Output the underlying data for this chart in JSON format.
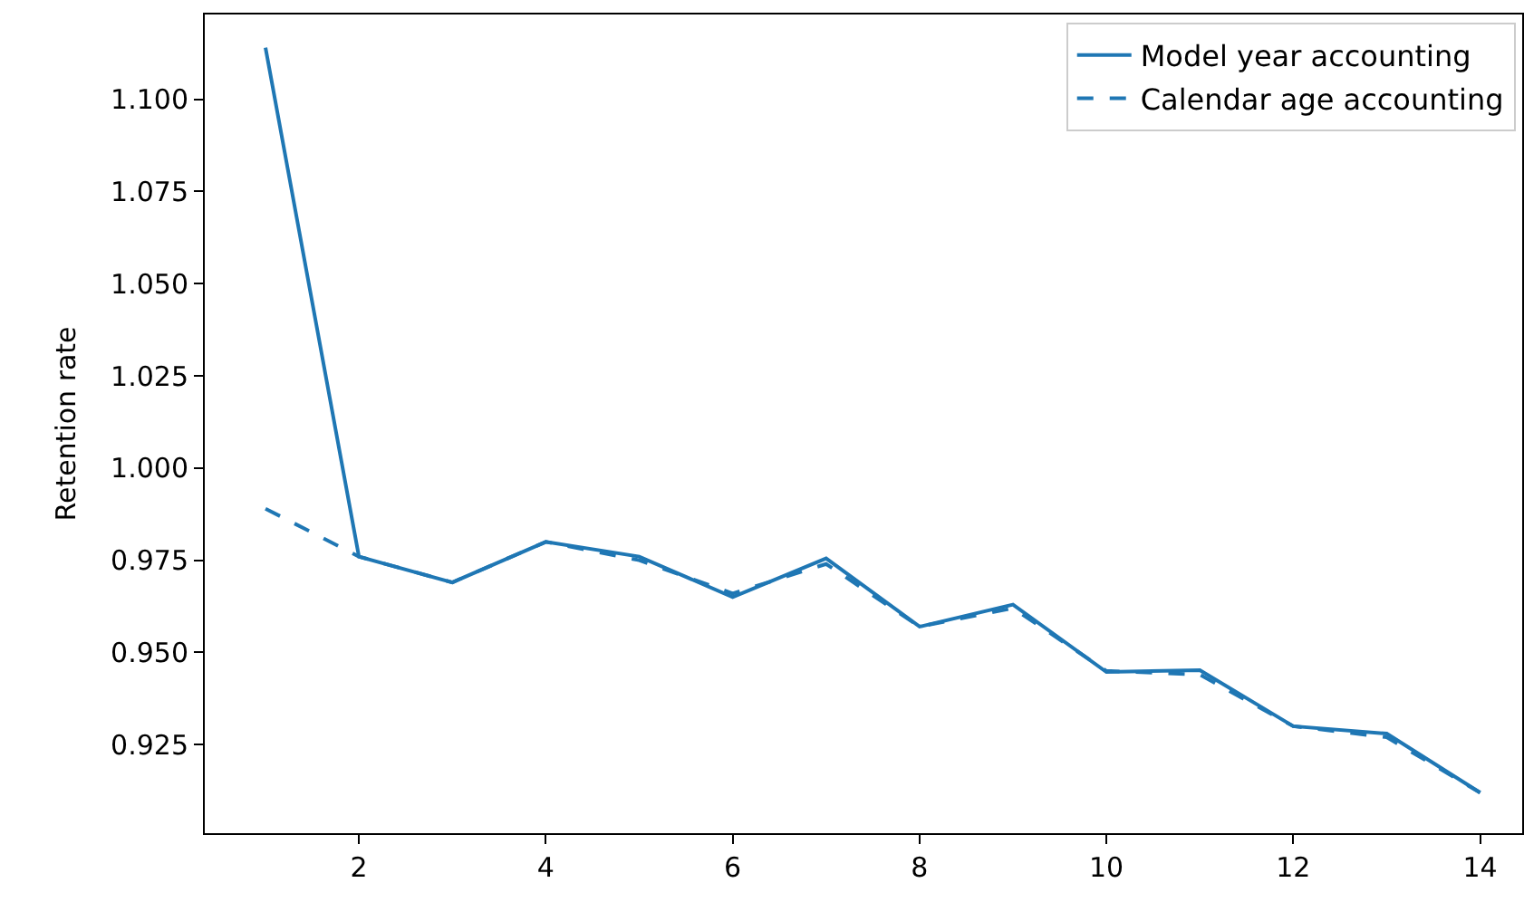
{
  "chart_data": {
    "type": "line",
    "ylabel": "Retention rate",
    "x": [
      1,
      2,
      3,
      4,
      5,
      6,
      7,
      8,
      9,
      10,
      11,
      12,
      13,
      14
    ],
    "series": [
      {
        "name": "Model year accounting",
        "color": "#1f77b4",
        "line_style": "solid",
        "values": [
          1.114,
          0.976,
          0.969,
          0.98,
          0.976,
          0.965,
          0.9755,
          0.957,
          0.963,
          0.9447,
          0.9452,
          0.93,
          0.928,
          0.912
        ]
      },
      {
        "name": "Calendar age accounting",
        "color": "#1f77b4",
        "line_style": "dashed",
        "values": [
          0.989,
          0.976,
          0.969,
          0.98,
          0.975,
          0.966,
          0.974,
          0.957,
          0.962,
          0.945,
          0.944,
          0.93,
          0.927,
          0.912
        ]
      }
    ],
    "xlim": [
      0.35,
      14.45
    ],
    "xticks": [
      2,
      4,
      6,
      8,
      10,
      12,
      14
    ],
    "ylim": [
      0.901,
      1.123
    ],
    "yticks": [
      0.925,
      {
        "value": 0.95,
        "label": "0.950"
      },
      0.975,
      {
        "value": 1.0,
        "label": "1.000"
      },
      1.025,
      {
        "value": 1.05,
        "label": "1.050"
      },
      1.075,
      {
        "value": 1.1,
        "label": "1.100"
      }
    ],
    "legend": "top right",
    "marker": "none"
  }
}
